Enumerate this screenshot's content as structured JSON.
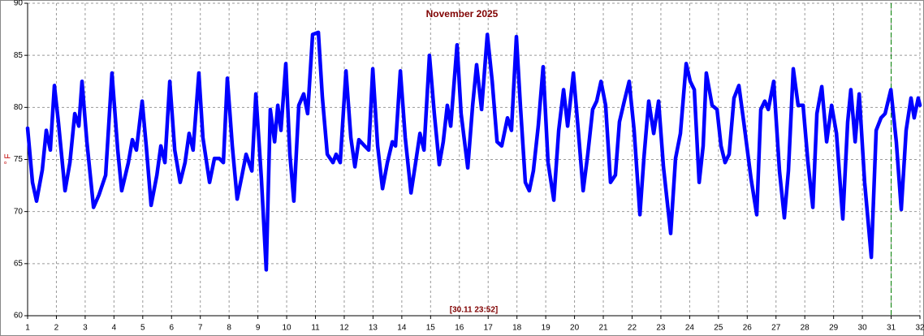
{
  "chart_data": {
    "type": "line",
    "title": "November 2025",
    "y_label": "° F",
    "cursor_label": "[30.11 23:52]",
    "cursor_x": 31,
    "color": "#0000ff",
    "grid": true,
    "xlim": [
      1,
      32
    ],
    "xticks": [
      1,
      2,
      3,
      4,
      5,
      6,
      7,
      8,
      9,
      10,
      11,
      12,
      13,
      14,
      15,
      16,
      17,
      18,
      19,
      20,
      21,
      22,
      23,
      24,
      25,
      26,
      27,
      28,
      29,
      30,
      31,
      32
    ],
    "ylim": [
      60,
      90
    ],
    "yticks": [
      60,
      65,
      70,
      75,
      80,
      85,
      90
    ],
    "x": [
      1.0,
      1.17,
      1.31,
      1.51,
      1.65,
      1.79,
      1.93,
      2.07,
      2.3,
      2.47,
      2.64,
      2.78,
      2.89,
      3.06,
      3.29,
      3.48,
      3.71,
      3.93,
      4.13,
      4.27,
      4.5,
      4.64,
      4.78,
      4.98,
      5.12,
      5.29,
      5.49,
      5.63,
      5.77,
      5.94,
      6.11,
      6.3,
      6.47,
      6.61,
      6.75,
      6.95,
      7.09,
      7.32,
      7.49,
      7.66,
      7.8,
      7.94,
      8.11,
      8.28,
      8.45,
      8.59,
      8.79,
      8.93,
      9.12,
      9.29,
      9.43,
      9.58,
      9.69,
      9.8,
      9.97,
      10.11,
      10.25,
      10.42,
      10.59,
      10.73,
      10.9,
      11.1,
      11.24,
      11.41,
      11.61,
      11.72,
      11.86,
      12.06,
      12.23,
      12.37,
      12.51,
      12.71,
      12.85,
      12.99,
      13.16,
      13.33,
      13.5,
      13.67,
      13.78,
      13.95,
      14.12,
      14.32,
      14.48,
      14.63,
      14.77,
      14.96,
      15.13,
      15.3,
      15.44,
      15.58,
      15.7,
      15.92,
      16.06,
      16.29,
      16.46,
      16.6,
      16.77,
      16.97,
      17.14,
      17.31,
      17.47,
      17.67,
      17.81,
      17.98,
      18.12,
      18.29,
      18.43,
      18.57,
      18.74,
      18.91,
      19.08,
      19.28,
      19.45,
      19.62,
      19.76,
      19.96,
      20.13,
      20.3,
      20.46,
      20.63,
      20.77,
      20.92,
      21.08,
      21.25,
      21.42,
      21.56,
      21.73,
      21.9,
      22.07,
      22.27,
      22.41,
      22.58,
      22.75,
      22.92,
      23.09,
      23.34,
      23.51,
      23.68,
      23.88,
      24.02,
      24.16,
      24.33,
      24.47,
      24.58,
      24.78,
      24.95,
      25.09,
      25.23,
      25.37,
      25.54,
      25.71,
      25.88,
      26.13,
      26.33,
      26.47,
      26.61,
      26.73,
      26.92,
      27.12,
      27.29,
      27.43,
      27.6,
      27.77,
      27.94,
      28.11,
      28.28,
      28.42,
      28.59,
      28.76,
      28.93,
      29.1,
      29.32,
      29.49,
      29.6,
      29.75,
      29.89,
      30.08,
      30.31,
      30.48,
      30.65,
      30.79,
      30.99,
      31.18,
      31.35,
      31.52,
      31.69,
      31.8,
      31.94,
      32.0
    ],
    "values": [
      78,
      72.8,
      71,
      74,
      77.8,
      75.9,
      82.1,
      78.6,
      72,
      74.7,
      79.4,
      78.2,
      82.5,
      76.7,
      70.4,
      71.6,
      73.5,
      83.3,
      75.9,
      72,
      74.7,
      76.9,
      75.9,
      80.6,
      76.3,
      70.6,
      73.5,
      76.3,
      74.7,
      82.5,
      75.9,
      72.8,
      74.7,
      77.5,
      75.9,
      83.3,
      77.1,
      72.8,
      75.1,
      75.1,
      74.7,
      82.8,
      76.3,
      71.2,
      73.5,
      75.5,
      73.9,
      81.3,
      73.2,
      64.4,
      79.8,
      76.7,
      80.2,
      77.8,
      84.2,
      75.5,
      71,
      80.2,
      81.3,
      79.4,
      87,
      87.2,
      81,
      75.5,
      74.7,
      75.5,
      74.7,
      83.5,
      77.1,
      74.3,
      76.9,
      76.3,
      75.9,
      83.7,
      76.3,
      72.2,
      74.7,
      76.7,
      76.3,
      83.5,
      77.1,
      71.8,
      74.7,
      77.5,
      75.9,
      85,
      79.4,
      74.5,
      76.7,
      80.2,
      78.2,
      86,
      79.4,
      74.2,
      80.2,
      84.1,
      79.8,
      87,
      82.5,
      76.7,
      76.3,
      79,
      77.8,
      86.8,
      80.2,
      72.8,
      72,
      73.9,
      78.2,
      83.9,
      74.7,
      71.1,
      77.8,
      81.7,
      78.2,
      83.3,
      77.8,
      72,
      75.5,
      79.8,
      80.6,
      82.5,
      80.2,
      72.8,
      73.5,
      78.6,
      80.6,
      82.5,
      77.8,
      69.7,
      75.1,
      80.6,
      77.5,
      80.6,
      74.3,
      67.9,
      75.1,
      77.5,
      84.2,
      82.5,
      81.7,
      72.8,
      76.3,
      83.3,
      80.2,
      79.8,
      76.3,
      74.7,
      75.5,
      80.9,
      82.1,
      78.6,
      73.2,
      69.7,
      79.8,
      80.6,
      79.8,
      82.5,
      73.9,
      69.4,
      73.9,
      83.7,
      80.2,
      80.2,
      74.7,
      70.4,
      79.4,
      82,
      76.7,
      80.2,
      77.5,
      69.3,
      78.6,
      81.7,
      76.7,
      81.3,
      72.8,
      65.6,
      77.8,
      79,
      79.4,
      81.7,
      76.7,
      70.2,
      77.8,
      80.9,
      79,
      80.9,
      80.2
    ]
  }
}
